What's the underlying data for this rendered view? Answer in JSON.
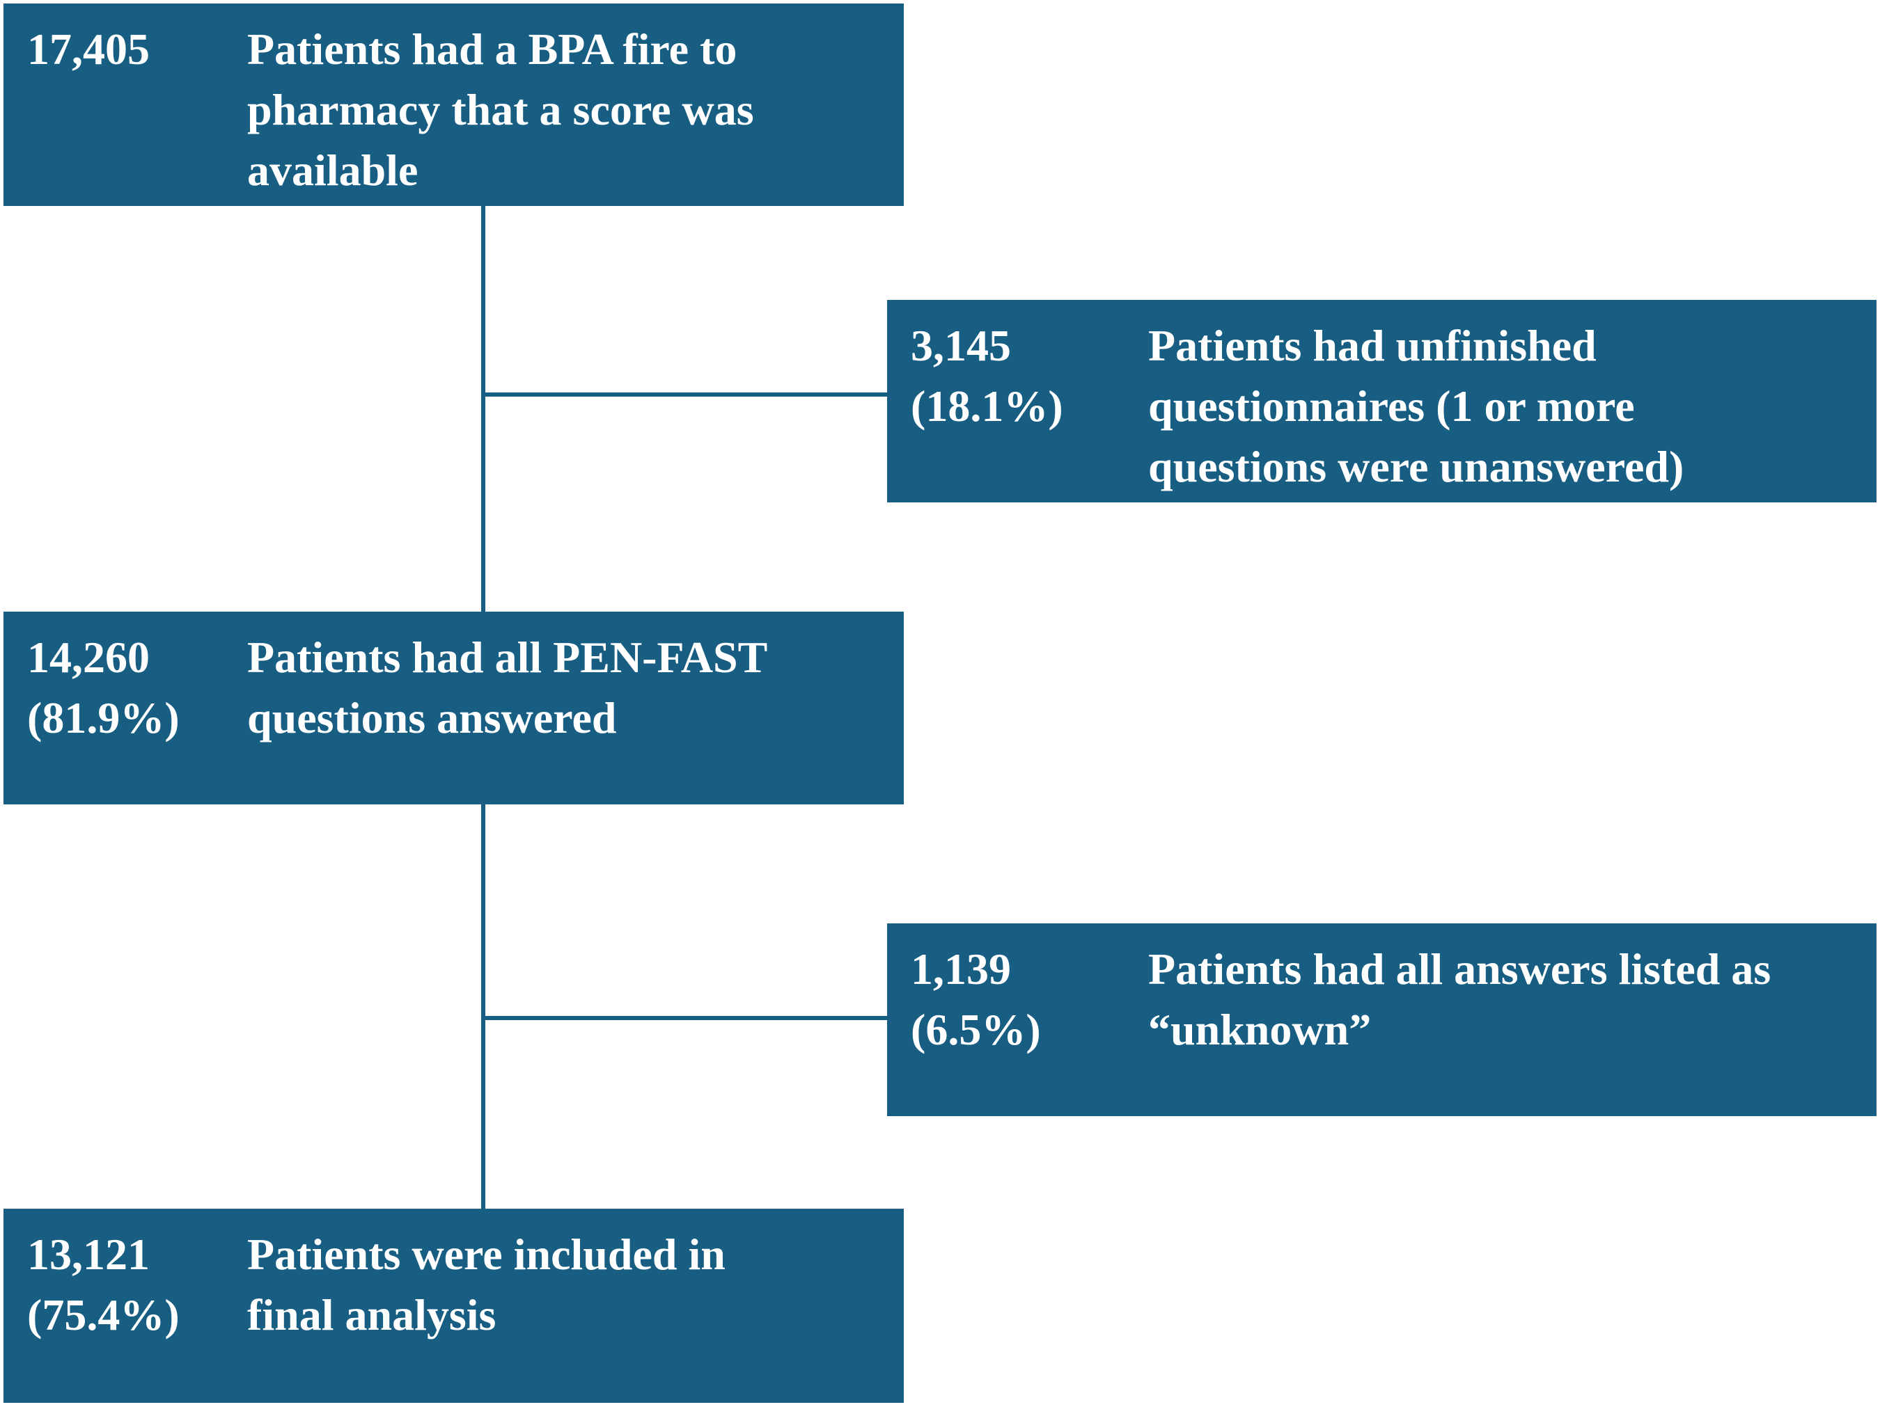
{
  "flowchart": {
    "start": {
      "count": "17,405",
      "description": "Patients had a BPA fire to\npharmacy that a score was\navailable"
    },
    "exclusion_1": {
      "count": "3,145\n(18.1%)",
      "description": "Patients had unfinished\nquestionnaires (1 or more\nquestions were unanswered)"
    },
    "answered": {
      "count": "14,260\n(81.9%)",
      "description": "Patients had all PEN-FAST\nquestions answered"
    },
    "exclusion_2": {
      "count": "1,139\n(6.5%)",
      "description": "Patients had all answers listed as\n“unknown”"
    },
    "final": {
      "count": "13,121\n(75.4%)",
      "description": "Patients were included in\nfinal analysis"
    }
  },
  "colors": {
    "box_fill": "#175e82",
    "text": "#ffffff",
    "connector": "#175e82",
    "background": "#ffffff"
  }
}
